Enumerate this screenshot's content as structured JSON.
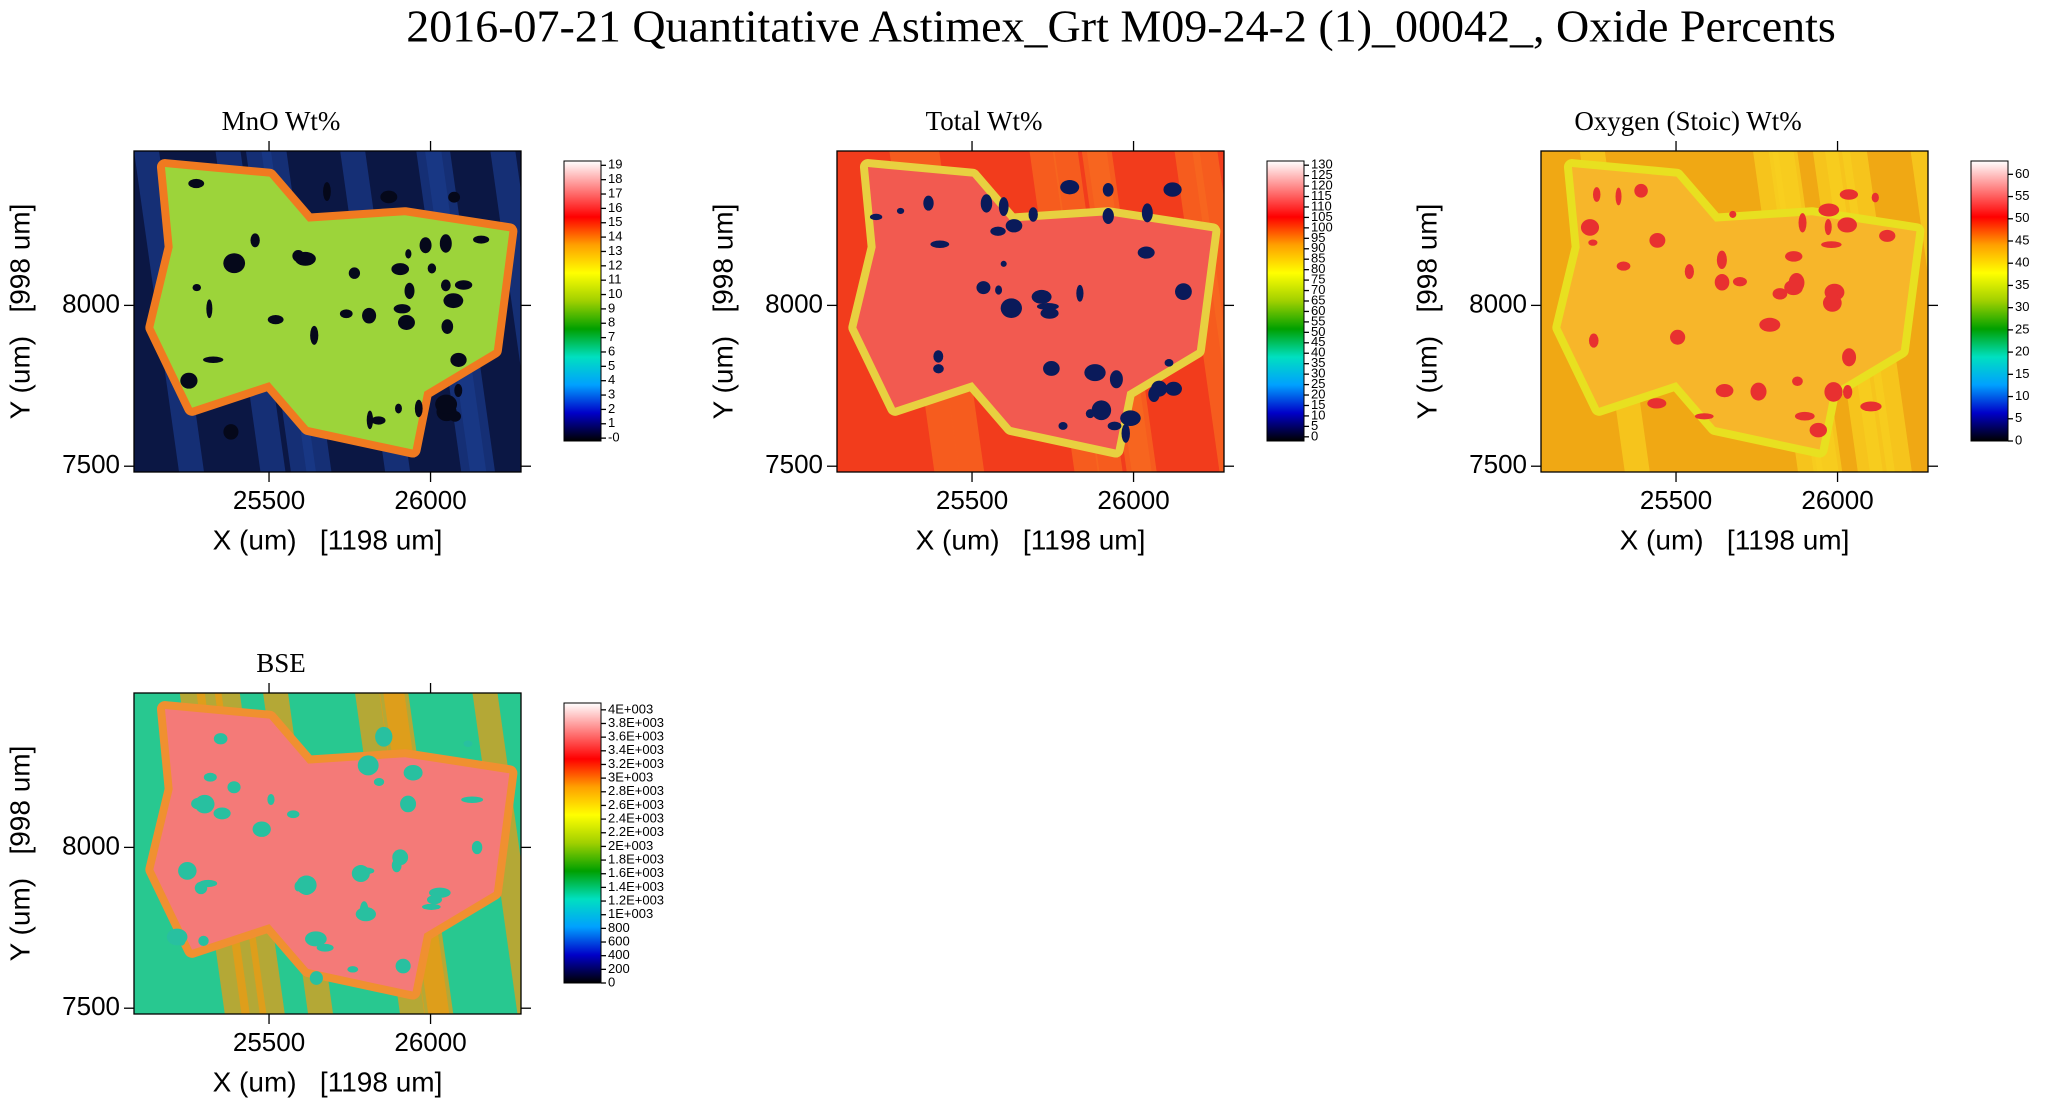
{
  "title": "2016-07-21 Quantitative Astimex_Grt M09-24-2 (1)_00042_, Oxide Percents",
  "colormap": [
    "#000000",
    "#0000c8",
    "#00a0ff",
    "#00e0c0",
    "#00a000",
    "#a0d000",
    "#ffff00",
    "#ffa000",
    "#ff0000",
    "#ff8080",
    "#ffffff"
  ],
  "chart_data": [
    {
      "type": "map",
      "title": "MnO Wt%",
      "x_label": "X (um)   [1198 um]",
      "y_label": "Y (um)   [998 um]",
      "xlim": [
        25082,
        26280
      ],
      "ylim": [
        7482,
        8480
      ],
      "xticks": [
        25500,
        26000
      ],
      "yticks": [
        7500,
        8000
      ],
      "clim": [
        -0.2,
        19.3
      ],
      "cticks": [
        {
          "value": 0,
          "label": "-0"
        },
        1,
        2,
        3,
        4,
        5,
        6,
        7,
        8,
        9,
        10,
        11,
        12,
        13,
        14,
        15,
        16,
        17,
        18,
        19
      ]
    },
    {
      "type": "map",
      "title": "Total Wt%",
      "x_label": "X (um)   [1198 um]",
      "y_label": "Y (um)   [998 um]",
      "xlim": [
        25082,
        26280
      ],
      "ylim": [
        7482,
        8480
      ],
      "xticks": [
        25500,
        26000
      ],
      "yticks": [
        7500,
        8000
      ],
      "clim": [
        -2,
        132
      ],
      "cticks": [
        0,
        5,
        10,
        15,
        20,
        25,
        30,
        35,
        40,
        45,
        50,
        55,
        60,
        65,
        70,
        75,
        80,
        85,
        90,
        95,
        100,
        105,
        110,
        115,
        120,
        125,
        130
      ]
    },
    {
      "type": "map",
      "title": "Oxygen (Stoic) Wt%",
      "x_label": "X (um)   [1198 um]",
      "y_label": "Y (um)   [998 um]",
      "xlim": [
        25082,
        26280
      ],
      "ylim": [
        7482,
        8480
      ],
      "xticks": [
        25500,
        26000
      ],
      "yticks": [
        7500,
        8000
      ],
      "clim": [
        0,
        63
      ],
      "cticks": [
        0,
        5,
        10,
        15,
        20,
        25,
        30,
        35,
        40,
        45,
        50,
        55,
        60
      ]
    },
    {
      "type": "map",
      "title": "BSE",
      "x_label": "X (um)   [1198 um]",
      "y_label": "Y (um)   [998 um]",
      "xlim": [
        25082,
        26280
      ],
      "ylim": [
        7482,
        8480
      ],
      "xticks": [
        25500,
        26000
      ],
      "yticks": [
        7500,
        8000
      ],
      "clim": [
        0,
        4100
      ],
      "cticks": [
        0,
        200,
        400,
        600,
        800,
        {
          "value": 1000,
          "label": "1E+003"
        },
        {
          "value": 1200,
          "label": "1.2E+003"
        },
        {
          "value": 1400,
          "label": "1.4E+003"
        },
        {
          "value": 1600,
          "label": "1.6E+003"
        },
        {
          "value": 1800,
          "label": "1.8E+003"
        },
        {
          "value": 2000,
          "label": "2E+003"
        },
        {
          "value": 2200,
          "label": "2.2E+003"
        },
        {
          "value": 2400,
          "label": "2.4E+003"
        },
        {
          "value": 2600,
          "label": "2.6E+003"
        },
        {
          "value": 2800,
          "label": "2.8E+003"
        },
        {
          "value": 3000,
          "label": "3E+003"
        },
        {
          "value": 3200,
          "label": "3.2E+003"
        },
        {
          "value": 3400,
          "label": "3.4E+003"
        },
        {
          "value": 3600,
          "label": "3.6E+003"
        },
        {
          "value": 3800,
          "label": "3.8E+003"
        },
        {
          "value": 4000,
          "label": "4E+003"
        }
      ]
    }
  ]
}
